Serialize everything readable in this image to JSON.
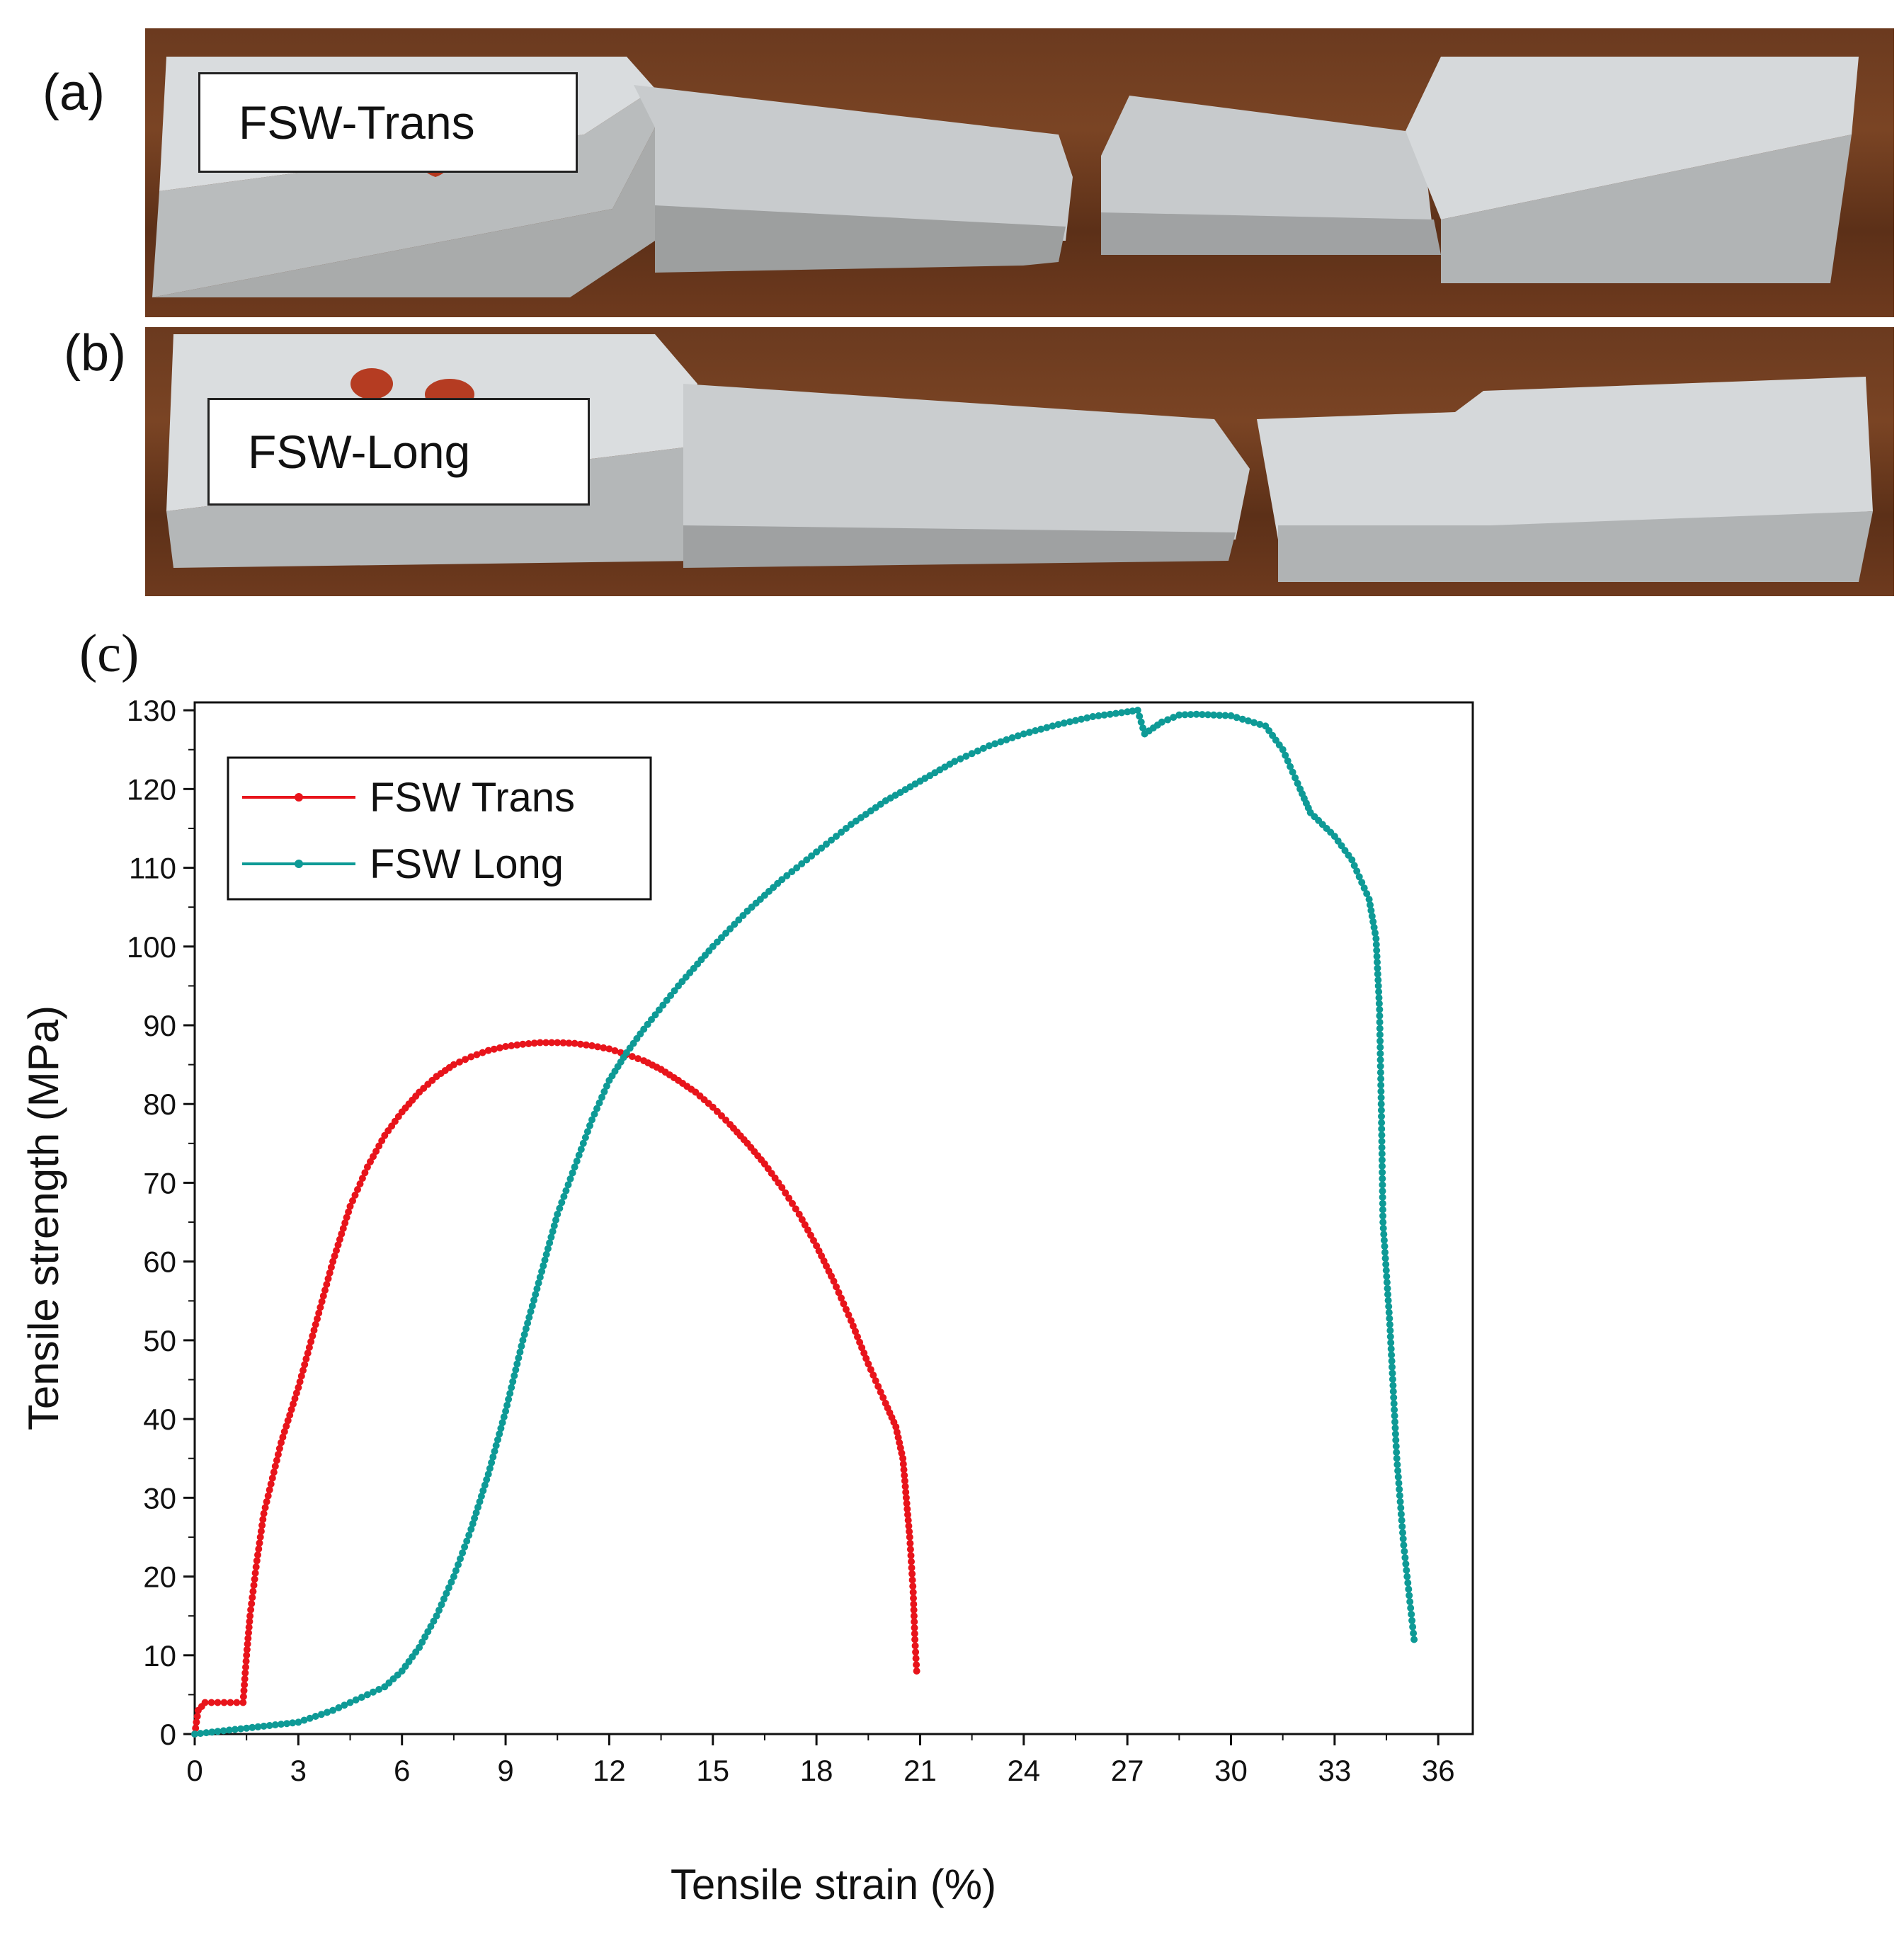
{
  "panels": {
    "a": {
      "label": "(a)",
      "specimen_label": "FSW-Trans"
    },
    "b": {
      "label": "(b)",
      "specimen_label": "FSW-Long"
    },
    "c": {
      "label": "(c)"
    }
  },
  "chart_data": {
    "type": "line",
    "title": "",
    "xlabel": "Tensile strain (%)",
    "ylabel": "Tensile strength (MPa)",
    "xlim": [
      0,
      37
    ],
    "ylim": [
      0,
      131
    ],
    "xticks": [
      0,
      3,
      6,
      9,
      12,
      15,
      18,
      21,
      24,
      27,
      30,
      33,
      36
    ],
    "yticks": [
      0,
      10,
      20,
      30,
      40,
      50,
      60,
      70,
      80,
      90,
      100,
      110,
      120,
      130
    ],
    "legend_position": "top-left",
    "grid": false,
    "series": [
      {
        "name": "FSW Trans",
        "color": "#e8141b",
        "x": [
          0,
          0.1,
          0.3,
          1.4,
          1.5,
          1.6,
          1.8,
          2.0,
          2.5,
          3.0,
          3.5,
          4.0,
          4.5,
          5.0,
          5.5,
          6.0,
          6.5,
          7.0,
          7.5,
          8.0,
          8.5,
          9.0,
          9.5,
          10.0,
          10.5,
          11.0,
          11.5,
          12.0,
          12.5,
          13.0,
          13.5,
          14.0,
          14.5,
          15.0,
          15.5,
          16.0,
          16.5,
          17.0,
          17.5,
          18.0,
          18.5,
          19.0,
          19.5,
          20.0,
          20.3,
          20.5,
          20.6,
          20.7,
          20.8,
          20.85,
          20.9
        ],
        "y": [
          0,
          3,
          4,
          4,
          10,
          15,
          22,
          28,
          37,
          44,
          52,
          60,
          67,
          72,
          76,
          79,
          81.5,
          83.5,
          85,
          86,
          86.8,
          87.3,
          87.6,
          87.8,
          87.8,
          87.7,
          87.4,
          87,
          86.3,
          85.5,
          84.4,
          83,
          81.5,
          79.6,
          77.4,
          75,
          72.4,
          69.4,
          66,
          62,
          57.5,
          52.5,
          47,
          42,
          39,
          35,
          30,
          25,
          18,
          12,
          8
        ]
      },
      {
        "name": "FSW Long",
        "color": "#0e9a96",
        "x": [
          0,
          1,
          2,
          3,
          4,
          5,
          5.5,
          6,
          6.5,
          7,
          7.5,
          8,
          8.5,
          9,
          9.5,
          10,
          10.5,
          11,
          11.5,
          12,
          12.5,
          13,
          14,
          15,
          16,
          17,
          18,
          19,
          20,
          21,
          22,
          23,
          24,
          25,
          26,
          27,
          27.3,
          27.5,
          28,
          28.5,
          29,
          30,
          31,
          31.5,
          32,
          32.3,
          33,
          33.5,
          34,
          34.2,
          34.3,
          34.35,
          34.4,
          34.6,
          34.8,
          35,
          35.2,
          35.3
        ],
        "y": [
          0,
          0.5,
          1,
          1.5,
          3,
          5,
          6,
          8,
          11,
          15,
          20,
          26,
          33,
          41,
          50,
          58,
          66,
          72,
          78,
          83,
          86.5,
          89.5,
          95,
          100,
          104.5,
          108.5,
          112,
          115.5,
          118.5,
          121,
          123.5,
          125.5,
          127,
          128.2,
          129.2,
          129.8,
          130,
          127,
          128.5,
          129.4,
          129.5,
          129.3,
          128,
          125,
          120,
          117,
          114,
          111,
          106,
          101,
          92,
          80,
          65,
          52,
          35,
          24,
          16,
          12
        ]
      }
    ]
  }
}
